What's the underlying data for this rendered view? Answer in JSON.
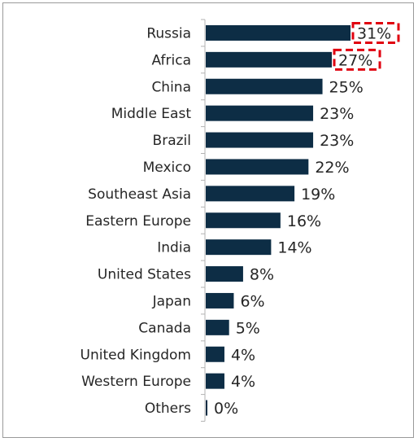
{
  "chart_data": {
    "type": "bar",
    "orientation": "horizontal",
    "title": "",
    "xlabel": "",
    "ylabel": "",
    "categories": [
      "Russia",
      "Africa",
      "China",
      "Middle East",
      "Brazil",
      "Mexico",
      "Southeast Asia",
      "Eastern Europe",
      "India",
      "United States",
      "Japan",
      "Canada",
      "United Kingdom",
      "Western Europe",
      "Others"
    ],
    "values": [
      31,
      27,
      25,
      23,
      23,
      22,
      19,
      16,
      14,
      8,
      6,
      5,
      4,
      4,
      0
    ],
    "value_labels": [
      "31%",
      "27%",
      "25%",
      "23%",
      "23%",
      "22%",
      "19%",
      "16%",
      "14%",
      "8%",
      "6%",
      "5%",
      "4%",
      "4%",
      "0%"
    ],
    "xlim": [
      0,
      31
    ],
    "grid": false,
    "legend": "none",
    "bar_color": "#0d2d45",
    "highlight_color": "#e0000f",
    "highlighted_labels": [
      "31%",
      "27%"
    ]
  }
}
